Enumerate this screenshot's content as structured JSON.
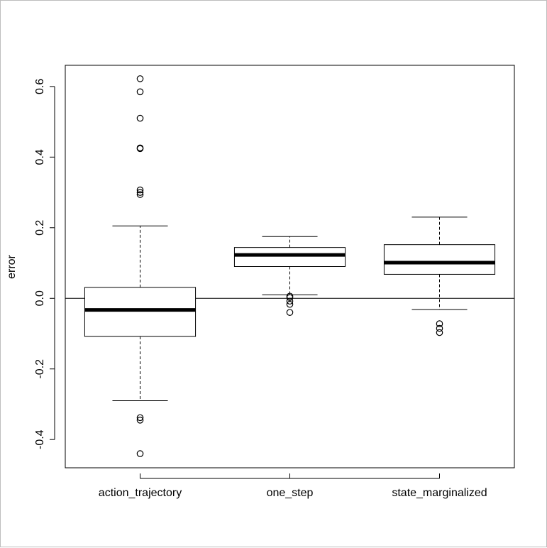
{
  "chart_data": {
    "type": "boxplot",
    "title": "",
    "xlabel": "",
    "ylabel": "error",
    "ylim": [
      -0.48,
      0.66
    ],
    "yticks": [
      -0.4,
      -0.2,
      0.0,
      0.2,
      0.4,
      0.6
    ],
    "ytick_labels": [
      "-0.4",
      "-0.2",
      "0.0",
      "0.2",
      "0.4",
      "0.6"
    ],
    "reference_line_y": 0.0,
    "grid": false,
    "categories": [
      "action_trajectory",
      "one_step",
      "state_marginalized"
    ],
    "boxes": [
      {
        "category": "action_trajectory",
        "whisker_low": -0.29,
        "q1": -0.108,
        "median": -0.033,
        "q3": 0.031,
        "whisker_high": 0.205,
        "outliers": [
          0.622,
          0.585,
          0.51,
          0.426,
          0.424,
          0.307,
          0.3,
          0.294,
          -0.338,
          -0.345,
          -0.44
        ]
      },
      {
        "category": "one_step",
        "whisker_low": 0.01,
        "q1": 0.09,
        "median": 0.123,
        "q3": 0.144,
        "whisker_high": 0.175,
        "outliers": [
          0.006,
          0.002,
          -0.008,
          -0.017,
          -0.04
        ]
      },
      {
        "category": "state_marginalized",
        "whisker_low": -0.032,
        "q1": 0.068,
        "median": 0.101,
        "q3": 0.152,
        "whisker_high": 0.23,
        "outliers": [
          -0.072,
          -0.085,
          -0.097
        ]
      }
    ]
  }
}
